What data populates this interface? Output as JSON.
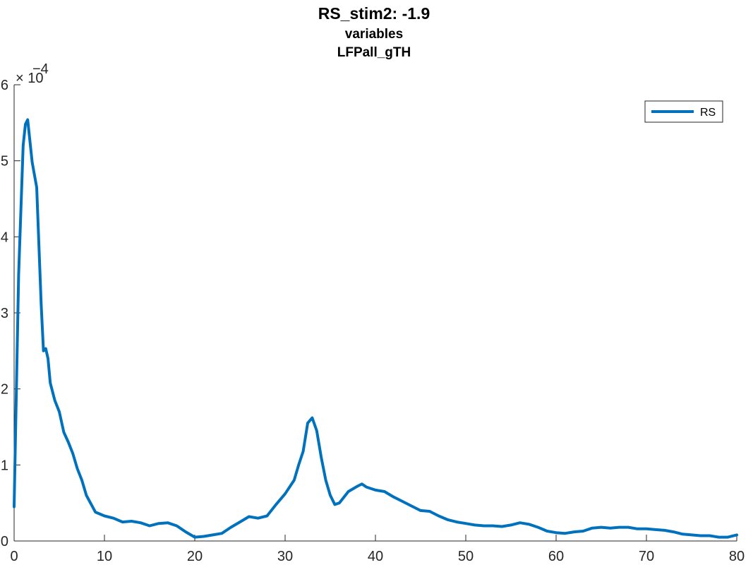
{
  "chart_data": {
    "type": "line",
    "title": "RS_stim2: -1.9",
    "subtitle_lines": [
      "variables",
      "LFPall_gTH"
    ],
    "xlabel": "",
    "ylabel": "",
    "xlim": [
      0,
      80
    ],
    "ylim": [
      0,
      0.0006
    ],
    "x_ticks": [
      0,
      10,
      20,
      30,
      40,
      50,
      60,
      70,
      80
    ],
    "y_ticks": [
      0,
      1,
      2,
      3,
      4,
      5,
      6
    ],
    "y_exponent_base": "× 10",
    "y_exponent_power": "−4",
    "grid": false,
    "legend_position": "top-right",
    "series": [
      {
        "name": "RS",
        "color": "#0072BD",
        "x": [
          0,
          0.5,
          1,
          1.25,
          1.5,
          2,
          2.5,
          3,
          3.25,
          3.5,
          3.75,
          4,
          4.5,
          5,
          5.5,
          6,
          6.5,
          7,
          7.5,
          8,
          9,
          10,
          11,
          12,
          13,
          14,
          15,
          16,
          17,
          18,
          19,
          20,
          21,
          22,
          23,
          24,
          25,
          26,
          27,
          28,
          29,
          30,
          31,
          31.5,
          32,
          32.5,
          33,
          33.5,
          34,
          34.5,
          35,
          35.5,
          36,
          37,
          38,
          38.5,
          39,
          40,
          41,
          42,
          43,
          44,
          45,
          46,
          47,
          48,
          49,
          50,
          51,
          52,
          53,
          54,
          55,
          56,
          57,
          58,
          59,
          60,
          61,
          62,
          63,
          64,
          65,
          66,
          67,
          68,
          69,
          70,
          71,
          72,
          73,
          74,
          75,
          76,
          77,
          78,
          79,
          80
        ],
        "y": [
          4.5e-05,
          0.00035,
          0.00052,
          0.000548,
          0.000554,
          0.000498,
          0.000465,
          0.00031,
          0.00025,
          0.000253,
          0.00024,
          0.000208,
          0.000185,
          0.00017,
          0.000143,
          0.00013,
          0.000115,
          9.5e-05,
          8e-05,
          6e-05,
          3.8e-05,
          3.3e-05,
          3e-05,
          2.5e-05,
          2.6e-05,
          2.4e-05,
          2e-05,
          2.3e-05,
          2.4e-05,
          2e-05,
          1.2e-05,
          5e-06,
          6e-06,
          8e-06,
          1e-05,
          1.8e-05,
          2.5e-05,
          3.2e-05,
          3e-05,
          3.3e-05,
          4.8e-05,
          6.2e-05,
          8e-05,
          0.0001,
          0.000118,
          0.000155,
          0.000162,
          0.000145,
          0.00011,
          8e-05,
          6e-05,
          4.8e-05,
          5e-05,
          6.5e-05,
          7.2e-05,
          7.5e-05,
          7.1e-05,
          6.7e-05,
          6.5e-05,
          5.8e-05,
          5.2e-05,
          4.6e-05,
          4e-05,
          3.9e-05,
          3.3e-05,
          2.8e-05,
          2.5e-05,
          2.3e-05,
          2.1e-05,
          2e-05,
          2e-05,
          1.9e-05,
          2.1e-05,
          2.4e-05,
          2.2e-05,
          1.8e-05,
          1.3e-05,
          1.1e-05,
          1e-05,
          1.2e-05,
          1.3e-05,
          1.7e-05,
          1.8e-05,
          1.7e-05,
          1.8e-05,
          1.8e-05,
          1.6e-05,
          1.6e-05,
          1.5e-05,
          1.4e-05,
          1.2e-05,
          9e-06,
          8e-06,
          7e-06,
          7e-06,
          5e-06,
          5e-06,
          8e-06
        ]
      }
    ]
  }
}
